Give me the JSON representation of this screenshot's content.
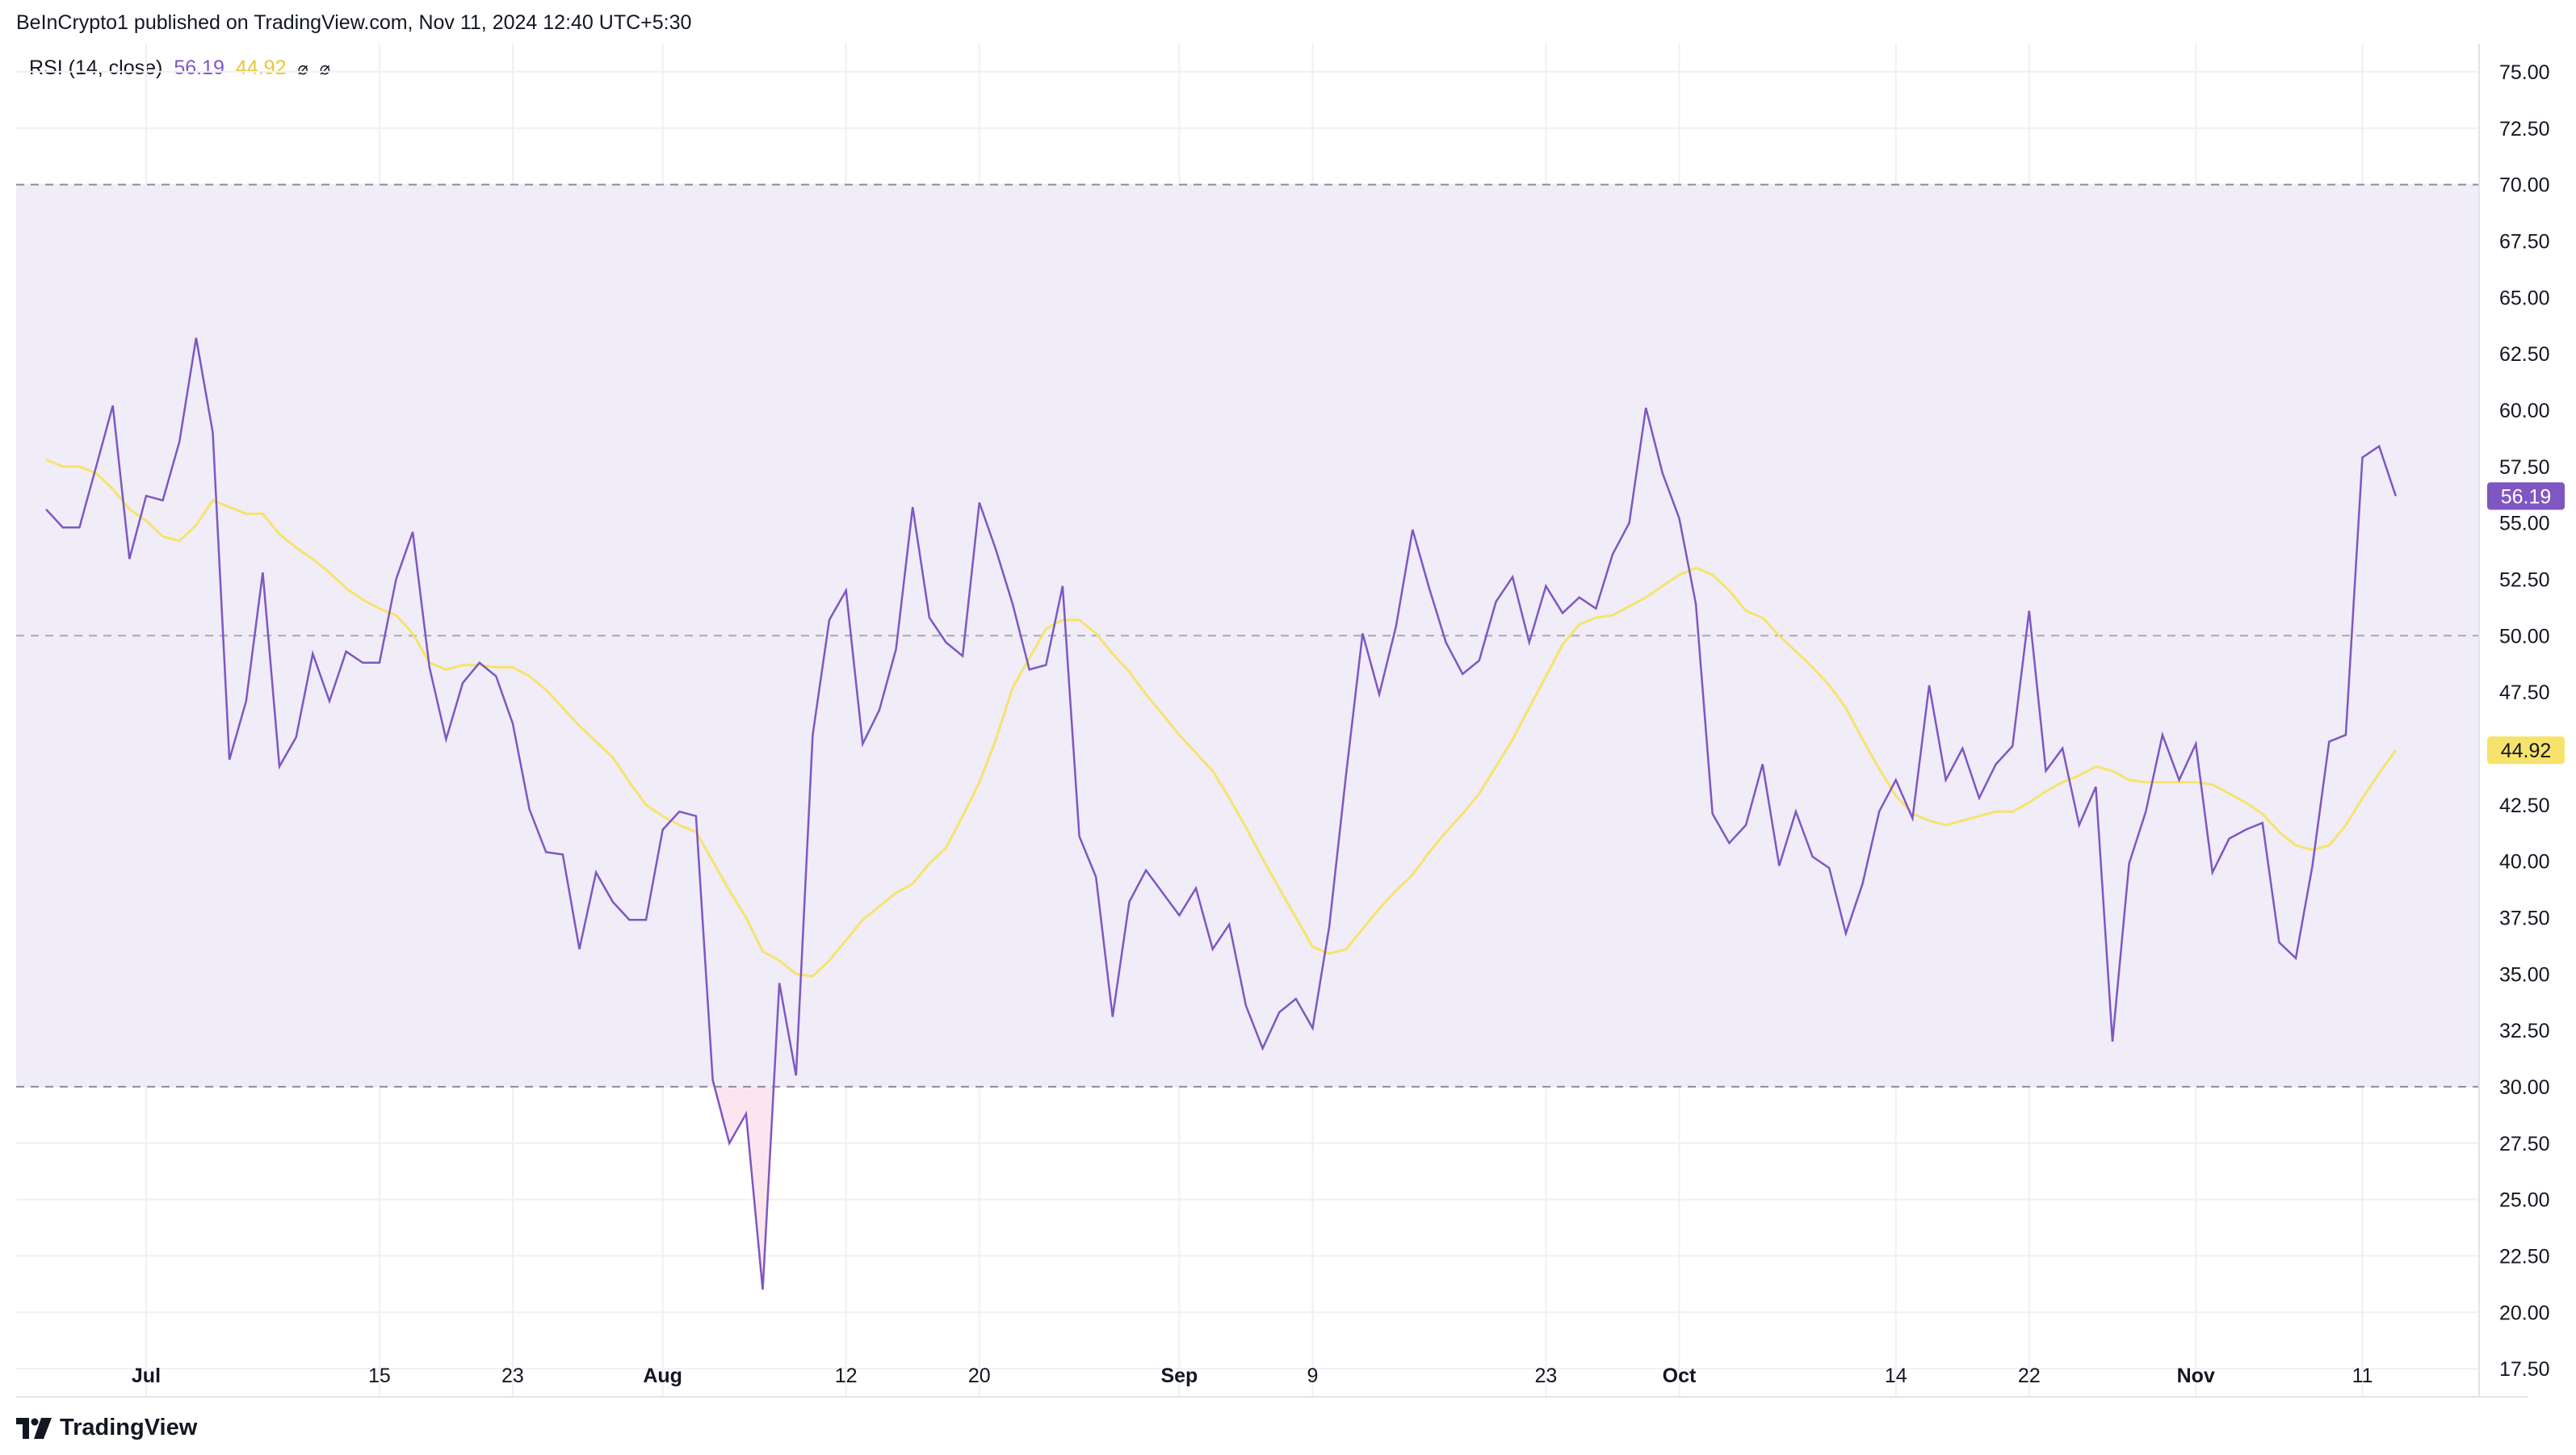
{
  "header": {
    "publisher": "BeInCrypto1 published on TradingView.com, Nov 11, 2024 12:40 UTC+5:30"
  },
  "legend": {
    "indicator": "RSI (14, close)",
    "rsi_value": "56.19",
    "ma_value": "44.92",
    "icon1": "⌀",
    "icon2": "⌀"
  },
  "footer": {
    "brand": "TradingView"
  },
  "colors": {
    "rsi": "#7e57c2",
    "ma": "#f7e36b",
    "band": "#f0ecf8",
    "oversold_fill": "#fbe6ef",
    "grid": "#eef0f3",
    "dashed": "#8c8c9c"
  },
  "chart_data": {
    "type": "line",
    "title": "",
    "xlabel": "",
    "ylabel": "",
    "ylim": [
      16.25,
      76.25
    ],
    "y_ticks": [
      "75.00",
      "72.50",
      "70.00",
      "67.50",
      "65.00",
      "62.50",
      "60.00",
      "57.50",
      "55.00",
      "52.50",
      "50.00",
      "47.50",
      "45.00",
      "42.50",
      "40.00",
      "37.50",
      "35.00",
      "32.50",
      "30.00",
      "27.50",
      "25.00",
      "22.50",
      "20.00",
      "17.50"
    ],
    "x_ticks": [
      {
        "label": "Jul",
        "bold": true,
        "day": 6
      },
      {
        "label": "15",
        "bold": false,
        "day": 20
      },
      {
        "label": "23",
        "bold": false,
        "day": 28
      },
      {
        "label": "Aug",
        "bold": true,
        "day": 37
      },
      {
        "label": "12",
        "bold": false,
        "day": 48
      },
      {
        "label": "20",
        "bold": false,
        "day": 56
      },
      {
        "label": "Sep",
        "bold": true,
        "day": 68
      },
      {
        "label": "9",
        "bold": false,
        "day": 76
      },
      {
        "label": "23",
        "bold": false,
        "day": 90
      },
      {
        "label": "Oct",
        "bold": true,
        "day": 98
      },
      {
        "label": "14",
        "bold": false,
        "day": 111
      },
      {
        "label": "22",
        "bold": false,
        "day": 119
      },
      {
        "label": "Nov",
        "bold": true,
        "day": 129
      },
      {
        "label": "11",
        "bold": false,
        "day": 139
      }
    ],
    "x_range": [
      -1.8,
      146
    ],
    "bands": {
      "upper": 70,
      "middle": 50,
      "lower": 30
    },
    "series": [
      {
        "name": "RSI",
        "values": [
          55.6,
          54.8,
          54.8,
          57.5,
          60.2,
          53.4,
          56.2,
          56.0,
          58.6,
          63.2,
          59.0,
          44.5,
          47.1,
          52.8,
          44.2,
          45.5,
          49.2,
          47.1,
          49.3,
          48.8,
          48.8,
          52.5,
          54.6,
          48.6,
          45.4,
          47.9,
          48.8,
          48.2,
          46.1,
          42.3,
          40.4,
          40.3,
          36.1,
          39.5,
          38.2,
          37.4,
          37.4,
          41.4,
          42.2,
          42.0,
          30.3,
          27.5,
          28.8,
          21.0,
          34.6,
          30.5,
          45.6,
          50.7,
          52.0,
          45.2,
          46.7,
          49.4,
          55.7,
          50.8,
          49.7,
          49.1,
          55.9,
          53.8,
          51.4,
          48.5,
          48.7,
          52.2,
          41.1,
          39.3,
          33.1,
          38.2,
          39.6,
          38.6,
          37.6,
          38.8,
          36.1,
          37.2,
          33.6,
          31.7,
          33.3,
          33.9,
          32.6,
          37.1,
          43.8,
          50.1,
          47.4,
          50.4,
          54.7,
          52.1,
          49.7,
          48.3,
          48.9,
          51.5,
          52.6,
          49.7,
          52.2,
          51.0,
          51.7,
          51.2,
          53.6,
          55.0,
          60.1,
          57.2,
          55.2,
          51.4,
          42.1,
          40.8,
          41.6,
          44.3,
          39.8,
          42.2,
          40.2,
          39.7,
          36.8,
          39.0,
          42.2,
          43.6,
          41.9,
          47.8,
          43.6,
          45.0,
          42.8,
          44.3,
          45.1,
          51.1,
          44.0,
          45.0,
          41.6,
          43.3,
          32.0,
          39.9,
          42.2,
          45.6,
          43.6,
          45.2,
          39.5,
          41.0,
          41.4,
          41.7,
          36.4,
          35.7,
          39.8,
          45.3,
          45.6,
          57.9,
          58.4,
          56.19
        ]
      },
      {
        "name": "RSI-based MA",
        "values": [
          57.8,
          57.5,
          57.5,
          57.2,
          56.5,
          55.6,
          55.1,
          54.4,
          54.2,
          54.9,
          56.0,
          55.7,
          55.4,
          55.4,
          54.5,
          53.9,
          53.4,
          52.8,
          52.1,
          51.6,
          51.2,
          50.9,
          50.1,
          48.8,
          48.5,
          48.7,
          48.7,
          48.6,
          48.6,
          48.2,
          47.6,
          46.8,
          46.0,
          45.3,
          44.6,
          43.5,
          42.5,
          42.0,
          41.6,
          41.3,
          40.0,
          38.7,
          37.5,
          36.0,
          35.6,
          35.0,
          34.9,
          35.6,
          36.5,
          37.4,
          38.0,
          38.6,
          39.0,
          39.9,
          40.6,
          42.0,
          43.5,
          45.4,
          47.7,
          49.0,
          50.3,
          50.7,
          50.7,
          50.1,
          49.2,
          48.4,
          47.4,
          46.5,
          45.6,
          44.8,
          44.0,
          42.8,
          41.5,
          40.1,
          38.8,
          37.5,
          36.2,
          35.9,
          36.1,
          37.0,
          37.9,
          38.7,
          39.4,
          40.4,
          41.3,
          42.1,
          43.0,
          44.2,
          45.4,
          46.8,
          48.2,
          49.6,
          50.5,
          50.8,
          50.9,
          51.3,
          51.7,
          52.2,
          52.7,
          53.0,
          52.7,
          52.0,
          51.1,
          50.8,
          50.0,
          49.3,
          48.6,
          47.8,
          46.8,
          45.4,
          44.1,
          42.9,
          42.1,
          41.8,
          41.6,
          41.8,
          42.0,
          42.2,
          42.2,
          42.6,
          43.1,
          43.5,
          43.8,
          44.2,
          44.0,
          43.6,
          43.5,
          43.5,
          43.5,
          43.5,
          43.4,
          43.0,
          42.6,
          42.1,
          41.3,
          40.7,
          40.5,
          40.7,
          41.6,
          42.8,
          43.9,
          44.92
        ]
      }
    ],
    "last_values": {
      "rsi": "56.19",
      "ma": "44.92"
    }
  }
}
